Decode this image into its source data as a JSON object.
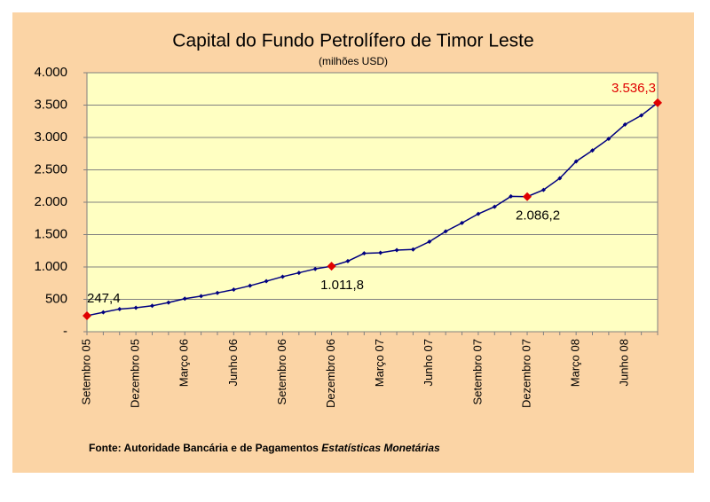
{
  "chart_data": {
    "type": "line",
    "title": "Capital do Fundo Petrolífero de Timor Leste",
    "subtitle": "(milhões USD)",
    "source": "Fonte: Autoridade Bancária e de Pagamentos",
    "source_publication": "Estatísticas Monetárias",
    "categories": [
      "Setembro 05",
      null,
      null,
      "Dezembro 05",
      null,
      null,
      "Março 06",
      null,
      null,
      "Junho 06",
      null,
      null,
      "Setembro 06",
      null,
      null,
      "Dezembro 06",
      null,
      null,
      "Março 07",
      null,
      null,
      "Junho 07",
      null,
      null,
      "Setembro 07",
      null,
      null,
      "Dezembro 07",
      null,
      null,
      "Março 08",
      null,
      null,
      "Junho 08",
      null,
      null
    ],
    "series": [
      {
        "name": "Capital",
        "color": "#000080",
        "highlight_color": "#e00000",
        "values": [
          247.4,
          300,
          350,
          370,
          400,
          450,
          510,
          550,
          600,
          650,
          710,
          780,
          850,
          910,
          970,
          1011.8,
          1090,
          1210,
          1220,
          1260,
          1270,
          1390,
          1550,
          1680,
          1820,
          1930,
          2090,
          2086.2,
          2190,
          2370,
          2630,
          2800,
          2980,
          3200,
          3340,
          3536.3
        ],
        "value_labels": [
          "247,4",
          null,
          null,
          null,
          null,
          null,
          null,
          null,
          null,
          null,
          null,
          null,
          null,
          null,
          null,
          "1.011,8",
          null,
          null,
          null,
          null,
          null,
          null,
          null,
          null,
          null,
          null,
          null,
          "2.086,2",
          null,
          null,
          null,
          null,
          null,
          null,
          null,
          "3.536,3"
        ]
      }
    ],
    "ylim": [
      0,
      4000
    ],
    "yticks": [
      {
        "value": 0,
        "label": "-"
      },
      500,
      {
        "value": 1000,
        "label": "1.000"
      },
      {
        "value": 1500,
        "label": "1.500"
      },
      {
        "value": 2000,
        "label": "2.000"
      },
      {
        "value": 2500,
        "label": "2.500"
      },
      {
        "value": 3000,
        "label": "3.000"
      },
      {
        "value": 3500,
        "label": "3.500"
      },
      {
        "value": 4000,
        "label": "4.000"
      }
    ],
    "grid": true
  }
}
